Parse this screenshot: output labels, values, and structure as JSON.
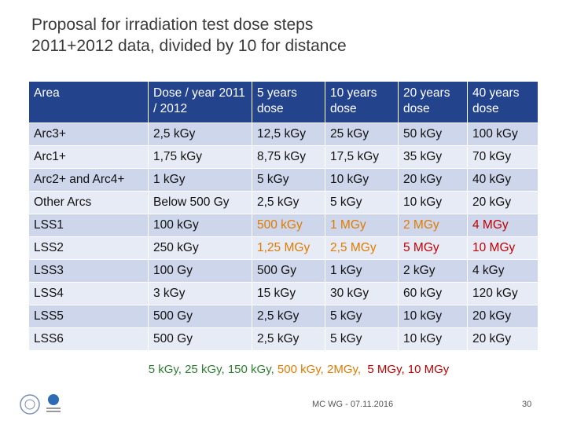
{
  "title": [
    "Proposal for irradiation test dose steps",
    "2011+2012 data, divided by 10 for distance"
  ],
  "table": {
    "header": [
      "Area",
      "Dose / year 2011 / 2012",
      "5 years dose",
      "10 years dose",
      "20 years dose",
      "40 years dose"
    ],
    "rows": [
      [
        "Arc3+",
        "2,5 kGy",
        "12,5 kGy",
        "25 kGy",
        "50 kGy",
        "100 kGy"
      ],
      [
        "Arc1+",
        "1,75 kGy",
        "8,75 kGy",
        "17,5 kGy",
        "35 kGy",
        "70 kGy"
      ],
      [
        "Arc2+ and Arc4+",
        "1 kGy",
        "5 kGy",
        "10 kGy",
        "20 kGy",
        "40 kGy"
      ],
      [
        "Other Arcs",
        "Below 500 Gy",
        "2,5 kGy",
        "5 kGy",
        "10 kGy",
        "20 kGy"
      ],
      [
        "LSS1",
        "100 kGy",
        "500 kGy",
        "1 MGy",
        "2 MGy",
        "4 MGy"
      ],
      [
        "LSS2",
        "250 kGy",
        "1,25 MGy",
        "2,5 MGy",
        "5 MGy",
        "10 MGy"
      ],
      [
        "LSS3",
        "100 Gy",
        "500 Gy",
        "1 kGy",
        "2 kGy",
        "4 kGy"
      ],
      [
        "LSS4",
        "3 kGy",
        "15 kGy",
        "30 kGy",
        "60 kGy",
        "120 kGy"
      ],
      [
        "LSS5",
        "500 Gy",
        "2,5 kGy",
        "5 kGy",
        "10 kGy",
        "20 kGy"
      ],
      [
        "LSS6",
        "500 Gy",
        "2,5 kGy",
        "5 kGy",
        "10 kGy",
        "20 kGy"
      ]
    ],
    "cell_colors": [
      [
        null,
        null,
        null,
        null,
        null,
        null
      ],
      [
        null,
        null,
        null,
        null,
        null,
        null
      ],
      [
        null,
        null,
        null,
        null,
        null,
        null
      ],
      [
        null,
        null,
        null,
        null,
        null,
        null
      ],
      [
        null,
        null,
        "#e07b00",
        "#e07b00",
        "#e07b00",
        "#c00000"
      ],
      [
        null,
        null,
        "#e07b00",
        "#e07b00",
        "#c00000",
        "#c00000"
      ],
      [
        null,
        null,
        null,
        null,
        null,
        null
      ],
      [
        null,
        null,
        null,
        null,
        null,
        null
      ],
      [
        null,
        null,
        null,
        null,
        null,
        null
      ],
      [
        null,
        null,
        null,
        null,
        null,
        null
      ]
    ]
  },
  "note": [
    {
      "text": "5 kGy, 25 kGy, 150 kGy, ",
      "color": "#2e7d32"
    },
    {
      "text": "500 kGy, 2MGy, ",
      "color": "#e07b00"
    },
    {
      "text": " 5 MGy, 10 MGy",
      "color": "#c00000"
    }
  ],
  "footer": "MC WG - 07.11.2016",
  "page_number": "30"
}
